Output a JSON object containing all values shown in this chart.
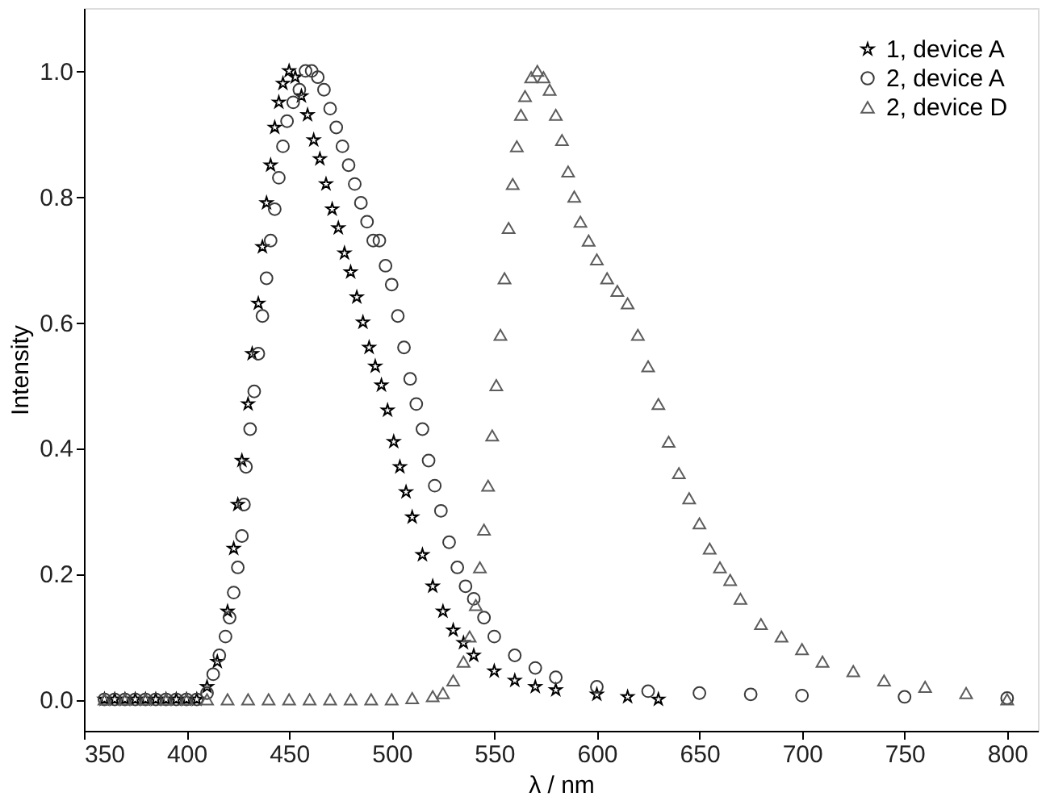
{
  "chart_data": {
    "type": "scatter",
    "xlabel": "λ / nm",
    "ylabel": "Intensity",
    "xlim": [
      350,
      815
    ],
    "ylim": [
      -0.05,
      1.1
    ],
    "xticks": [
      350,
      400,
      450,
      500,
      550,
      600,
      650,
      700,
      750,
      800
    ],
    "yticks": [
      {
        "value": 0,
        "label": "0.0"
      },
      0.2,
      0.4,
      0.6,
      0.8,
      {
        "value": 1,
        "label": "1.0"
      }
    ],
    "legend": "top right",
    "grid": false,
    "series": [
      {
        "name": "1, device A",
        "color": "#000000",
        "marker": "star",
        "x": [
          360,
          365,
          370,
          375,
          380,
          385,
          390,
          395,
          400,
          405,
          410,
          415,
          420,
          423,
          425,
          427,
          430,
          432,
          435,
          437,
          439,
          441,
          443,
          445,
          447,
          450,
          453,
          456,
          459,
          462,
          465,
          468,
          471,
          474,
          477,
          480,
          483,
          486,
          489,
          492,
          495,
          498,
          501,
          504,
          507,
          510,
          515,
          520,
          525,
          530,
          535,
          540,
          550,
          560,
          570,
          580,
          600,
          615,
          630
        ],
        "values": [
          0,
          0,
          0,
          0,
          0,
          0,
          0,
          0,
          0,
          0,
          0.02,
          0.06,
          0.14,
          0.24,
          0.31,
          0.38,
          0.47,
          0.55,
          0.63,
          0.72,
          0.79,
          0.85,
          0.91,
          0.95,
          0.98,
          1.0,
          0.99,
          0.96,
          0.93,
          0.89,
          0.86,
          0.82,
          0.78,
          0.75,
          0.71,
          0.68,
          0.64,
          0.6,
          0.56,
          0.53,
          0.5,
          0.46,
          0.41,
          0.37,
          0.33,
          0.29,
          0.23,
          0.18,
          0.14,
          0.11,
          0.09,
          0.07,
          0.045,
          0.03,
          0.02,
          0.015,
          0.008,
          0.004,
          0
        ]
      },
      {
        "name": "2, device A",
        "color": "#3a3a3a",
        "marker": "circle",
        "x": [
          360,
          365,
          370,
          375,
          380,
          385,
          390,
          395,
          400,
          405,
          410,
          413,
          416,
          419,
          421,
          423,
          425,
          427,
          428,
          429,
          431,
          433,
          435,
          437,
          439,
          441,
          443,
          445,
          447,
          449,
          452,
          455,
          458,
          461,
          464,
          467,
          470,
          473,
          476,
          479,
          482,
          485,
          488,
          491,
          494,
          497,
          500,
          503,
          506,
          509,
          512,
          515,
          518,
          521,
          524,
          528,
          532,
          536,
          540,
          545,
          550,
          560,
          570,
          580,
          600,
          625,
          650,
          675,
          700,
          750,
          800
        ],
        "values": [
          0,
          0,
          0,
          0,
          0,
          0,
          0,
          0,
          0,
          0,
          0.01,
          0.04,
          0.07,
          0.1,
          0.13,
          0.17,
          0.21,
          0.26,
          0.31,
          0.37,
          0.43,
          0.49,
          0.55,
          0.61,
          0.67,
          0.73,
          0.78,
          0.83,
          0.88,
          0.92,
          0.95,
          0.97,
          1.0,
          1.0,
          0.99,
          0.97,
          0.94,
          0.91,
          0.88,
          0.85,
          0.82,
          0.79,
          0.76,
          0.73,
          0.73,
          0.69,
          0.66,
          0.61,
          0.56,
          0.51,
          0.47,
          0.43,
          0.38,
          0.34,
          0.3,
          0.25,
          0.21,
          0.18,
          0.16,
          0.13,
          0.1,
          0.07,
          0.05,
          0.035,
          0.02,
          0.013,
          0.01,
          0.008,
          0.006,
          0.004,
          0.002
        ]
      },
      {
        "name": "2, device D",
        "color": "#5c5c5c",
        "marker": "triangle",
        "x": [
          360,
          370,
          380,
          390,
          400,
          410,
          420,
          430,
          440,
          450,
          460,
          470,
          480,
          490,
          500,
          510,
          520,
          525,
          530,
          535,
          538,
          541,
          543,
          545,
          547,
          549,
          551,
          553,
          555,
          557,
          559,
          561,
          563,
          565,
          568,
          571,
          574,
          577,
          580,
          583,
          586,
          589,
          592,
          596,
          600,
          605,
          610,
          615,
          620,
          625,
          630,
          635,
          640,
          645,
          650,
          655,
          660,
          665,
          670,
          680,
          690,
          700,
          710,
          725,
          740,
          760,
          780,
          800
        ],
        "values": [
          0,
          0,
          0,
          0,
          0,
          0,
          0,
          0,
          0,
          0,
          0,
          0,
          0,
          0,
          0,
          0.002,
          0.005,
          0.01,
          0.03,
          0.06,
          0.1,
          0.15,
          0.21,
          0.27,
          0.34,
          0.42,
          0.5,
          0.58,
          0.67,
          0.75,
          0.82,
          0.88,
          0.93,
          0.96,
          0.99,
          1.0,
          0.99,
          0.97,
          0.93,
          0.89,
          0.84,
          0.8,
          0.76,
          0.73,
          0.7,
          0.67,
          0.65,
          0.63,
          0.58,
          0.53,
          0.47,
          0.41,
          0.36,
          0.32,
          0.28,
          0.24,
          0.21,
          0.19,
          0.16,
          0.12,
          0.1,
          0.08,
          0.06,
          0.045,
          0.03,
          0.02,
          0.01,
          0
        ]
      }
    ]
  }
}
